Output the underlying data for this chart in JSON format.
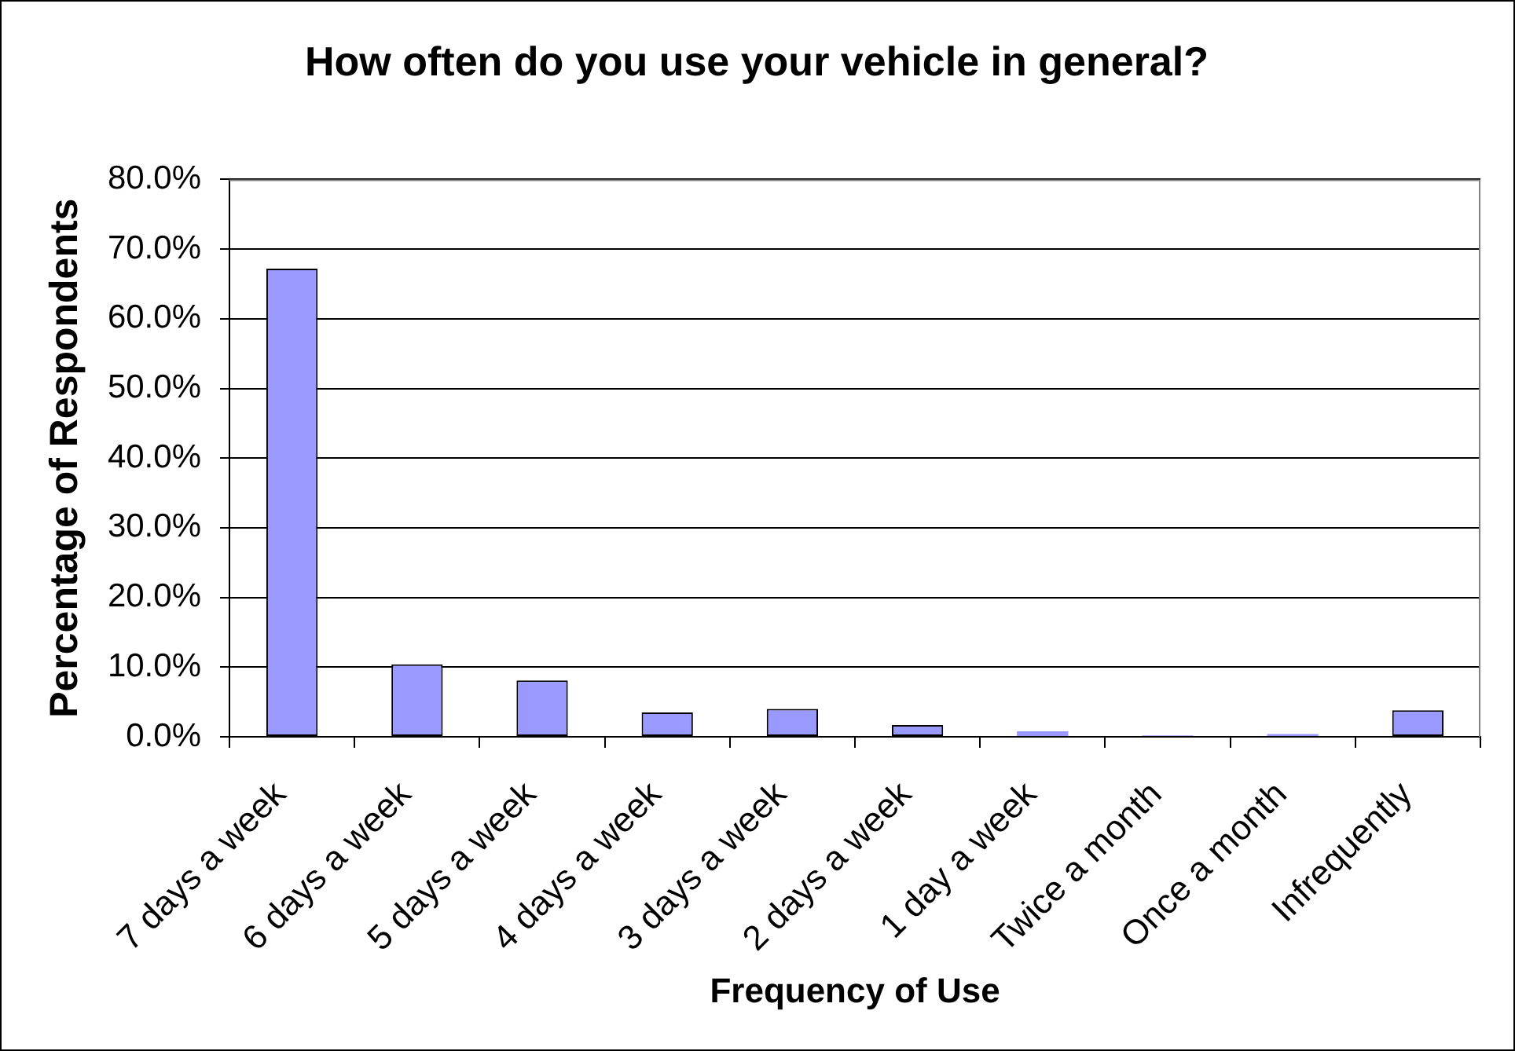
{
  "chart_data": {
    "type": "bar",
    "title": "How often do you use your vehicle in general?",
    "xlabel": "Frequency of Use",
    "ylabel": "Percentage of Respondents",
    "categories": [
      "7 days a week",
      "6 days a week",
      "5 days a week",
      "4 days a week",
      "3 days a week",
      "2 days a week",
      "1 day a week",
      "Twice a month",
      "Once a month",
      "Infrequently"
    ],
    "values": [
      67.2,
      10.4,
      8.1,
      3.5,
      4.0,
      1.7,
      0.8,
      0.2,
      0.4,
      3.8
    ],
    "color": "#9999ff",
    "ylim": [
      0,
      80
    ],
    "yticks": [
      {
        "value": 0,
        "label": "0.0%"
      },
      {
        "value": 10,
        "label": "10.0%"
      },
      {
        "value": 20,
        "label": "20.0%"
      },
      {
        "value": 30,
        "label": "30.0%"
      },
      {
        "value": 40,
        "label": "40.0%"
      },
      {
        "value": 50,
        "label": "50.0%"
      },
      {
        "value": 60,
        "label": "60.0%"
      },
      {
        "value": 70,
        "label": "70.0%"
      },
      {
        "value": 80,
        "label": "80.0%"
      }
    ],
    "grid": "y"
  }
}
